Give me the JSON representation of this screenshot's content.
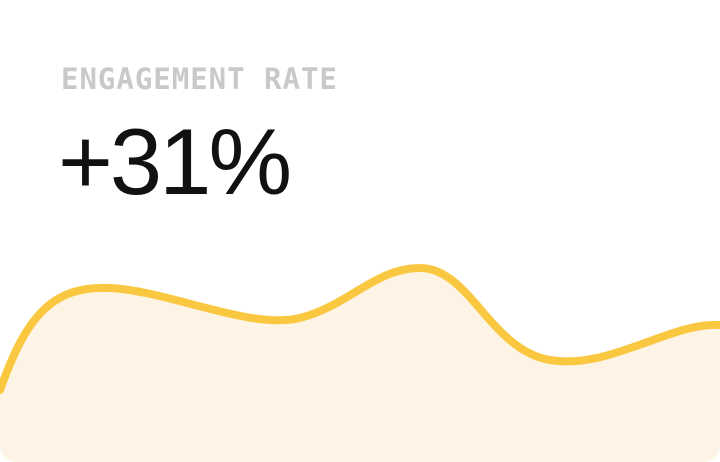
{
  "card": {
    "label": "ENGAGEMENT RATE",
    "value": "+31%"
  },
  "colors": {
    "label": "#c9c9c9",
    "value": "#111111",
    "line": "#fac840",
    "fill": "#fef4e6",
    "background": "#ffffff"
  }
}
